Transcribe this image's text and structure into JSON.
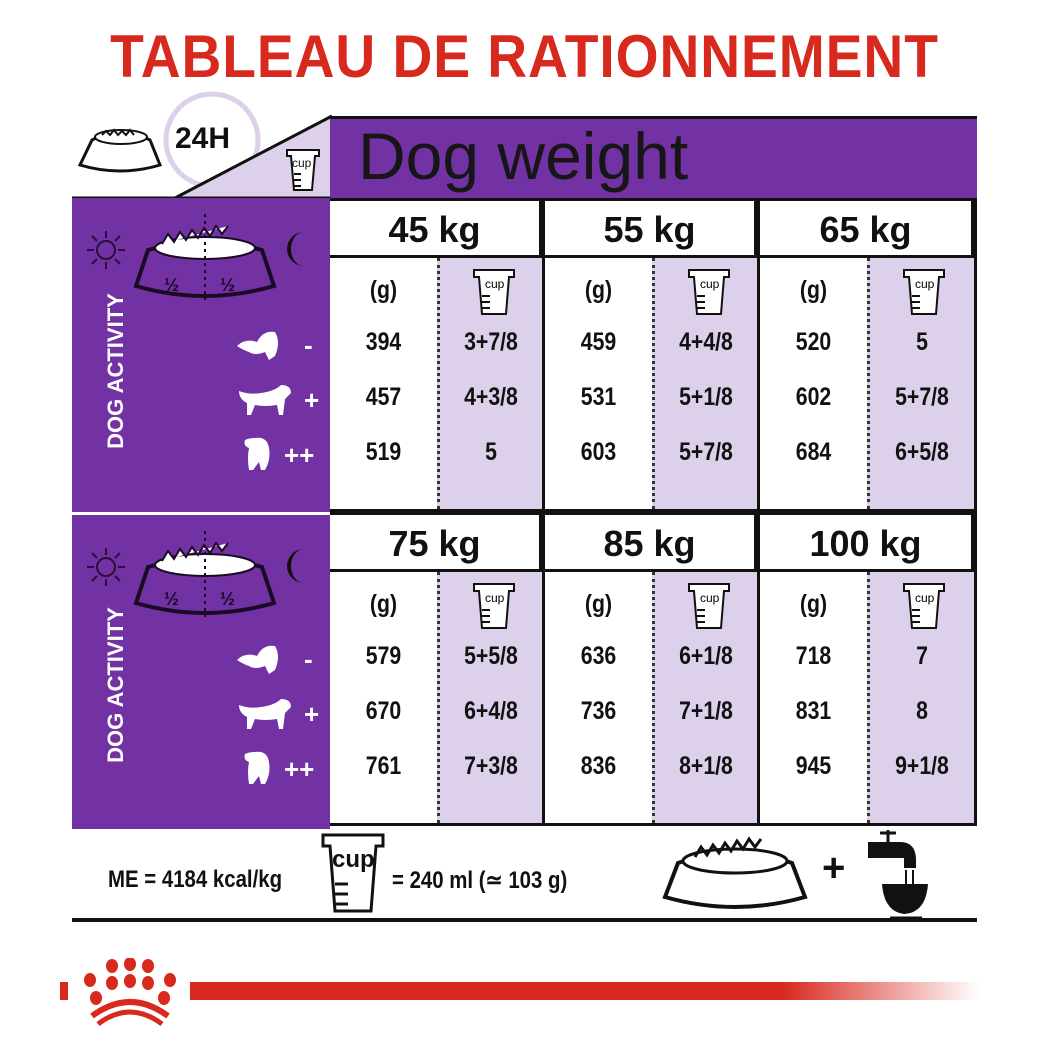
{
  "title": "TABLEAU DE RATIONNEMENT",
  "header": {
    "period": "24H",
    "cup_label": "cup",
    "heading": "Dog weight"
  },
  "activity_label": "DOG ACTIVITY",
  "half_labels": [
    "½",
    "½"
  ],
  "activity_levels": [
    "-",
    "+",
    "++"
  ],
  "grams_header": "(g)",
  "blocks": [
    {
      "weights": [
        {
          "label": "45 kg",
          "rows": [
            {
              "g": "394",
              "cup": "3+7/8"
            },
            {
              "g": "457",
              "cup": "4+3/8"
            },
            {
              "g": "519",
              "cup": "5"
            }
          ]
        },
        {
          "label": "55 kg",
          "rows": [
            {
              "g": "459",
              "cup": "4+4/8"
            },
            {
              "g": "531",
              "cup": "5+1/8"
            },
            {
              "g": "603",
              "cup": "5+7/8"
            }
          ]
        },
        {
          "label": "65 kg",
          "rows": [
            {
              "g": "520",
              "cup": "5"
            },
            {
              "g": "602",
              "cup": "5+7/8"
            },
            {
              "g": "684",
              "cup": "6+5/8"
            }
          ]
        }
      ]
    },
    {
      "weights": [
        {
          "label": "75 kg",
          "rows": [
            {
              "g": "579",
              "cup": "5+5/8"
            },
            {
              "g": "670",
              "cup": "6+4/8"
            },
            {
              "g": "761",
              "cup": "7+3/8"
            }
          ]
        },
        {
          "label": "85 kg",
          "rows": [
            {
              "g": "636",
              "cup": "6+1/8"
            },
            {
              "g": "736",
              "cup": "7+1/8"
            },
            {
              "g": "836",
              "cup": "8+1/8"
            }
          ]
        },
        {
          "label": "100 kg",
          "rows": [
            {
              "g": "718",
              "cup": "7"
            },
            {
              "g": "831",
              "cup": "8"
            },
            {
              "g": "945",
              "cup": "9+1/8"
            }
          ]
        }
      ]
    }
  ],
  "footer": {
    "energy": "ME = 4184 kcal/kg",
    "cup_equivalence": "= 240 ml (≃ 103 g)",
    "plus": "+"
  },
  "colors": {
    "title_red": "#d8291f",
    "purple": "#7232a4",
    "light_purple": "#ddd0ea"
  }
}
